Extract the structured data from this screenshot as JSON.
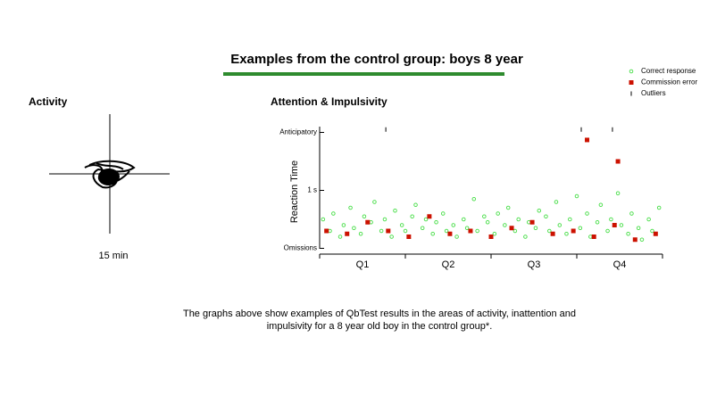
{
  "header": {
    "title": "Examples from the control group: boys 8 year"
  },
  "activity": {
    "title": "Activity",
    "duration": "15 min"
  },
  "chart_data": {
    "type": "scatter",
    "title": "Attention & Impulsivity",
    "y_label": "Reaction Time",
    "categories": [
      "Q1",
      "Q2",
      "Q3",
      "Q4"
    ],
    "xlim": [
      0,
      100
    ],
    "xticks": [
      0,
      25,
      50,
      75,
      100
    ],
    "ylim": [
      -0.1,
      2.1
    ],
    "yticks": [
      {
        "value": 0,
        "label": "Omissions"
      },
      {
        "value": 1,
        "label": "1 s"
      },
      {
        "value": 2,
        "label": "Anticipatory"
      }
    ],
    "legend": "top-right",
    "series": [
      {
        "name": "Correct response",
        "color": "#44dd44",
        "marker": "circle",
        "x": [
          1,
          3,
          4,
          6,
          7,
          9,
          10,
          12,
          13,
          15,
          16,
          18,
          19,
          21,
          22,
          24,
          25,
          27,
          28,
          30,
          31,
          33,
          34,
          36,
          37,
          39,
          40,
          42,
          43,
          45,
          46,
          48,
          49,
          51,
          52,
          54,
          55,
          57,
          58,
          60,
          61,
          63,
          64,
          66,
          67,
          69,
          70,
          72,
          73,
          75,
          76,
          78,
          79,
          81,
          82,
          84,
          85,
          87,
          88,
          90,
          91,
          93,
          94,
          96,
          97,
          99
        ],
        "values": [
          0.5,
          0.3,
          0.6,
          0.2,
          0.4,
          0.7,
          0.35,
          0.25,
          0.55,
          0.45,
          0.8,
          0.3,
          0.5,
          0.2,
          0.65,
          0.4,
          0.3,
          0.55,
          0.75,
          0.35,
          0.5,
          0.25,
          0.45,
          0.6,
          0.3,
          0.4,
          0.2,
          0.5,
          0.35,
          0.85,
          0.3,
          0.55,
          0.45,
          0.25,
          0.6,
          0.4,
          0.7,
          0.3,
          0.5,
          0.2,
          0.45,
          0.35,
          0.65,
          0.55,
          0.3,
          0.8,
          0.4,
          0.25,
          0.5,
          0.9,
          0.35,
          0.6,
          0.2,
          0.45,
          0.75,
          0.3,
          0.5,
          0.95,
          0.4,
          0.25,
          0.6,
          0.35,
          0.15,
          0.5,
          0.3,
          0.7
        ]
      },
      {
        "name": "Commission error",
        "color": "#cc1100",
        "marker": "square",
        "x": [
          2,
          8,
          14,
          20,
          26,
          32,
          38,
          44,
          50,
          56,
          62,
          68,
          74,
          78,
          80,
          86,
          87,
          92,
          98
        ],
        "values": [
          0.3,
          0.25,
          0.45,
          0.3,
          0.2,
          0.55,
          0.25,
          0.3,
          0.2,
          0.35,
          0.45,
          0.25,
          0.3,
          1.87,
          0.2,
          0.4,
          1.5,
          0.15,
          0.25
        ]
      },
      {
        "name": "Outliers",
        "color": "#000000",
        "marker": "tick",
        "x": [
          19.3,
          76.3,
          85.4
        ],
        "values": [
          2.05,
          2.05,
          2.05
        ]
      }
    ]
  },
  "footer": {
    "lines": [
      "The graphs above show examples of QbTest results in the areas of activity, inattention and",
      "impulsivity for a 8 year old boy in the control group*."
    ]
  }
}
